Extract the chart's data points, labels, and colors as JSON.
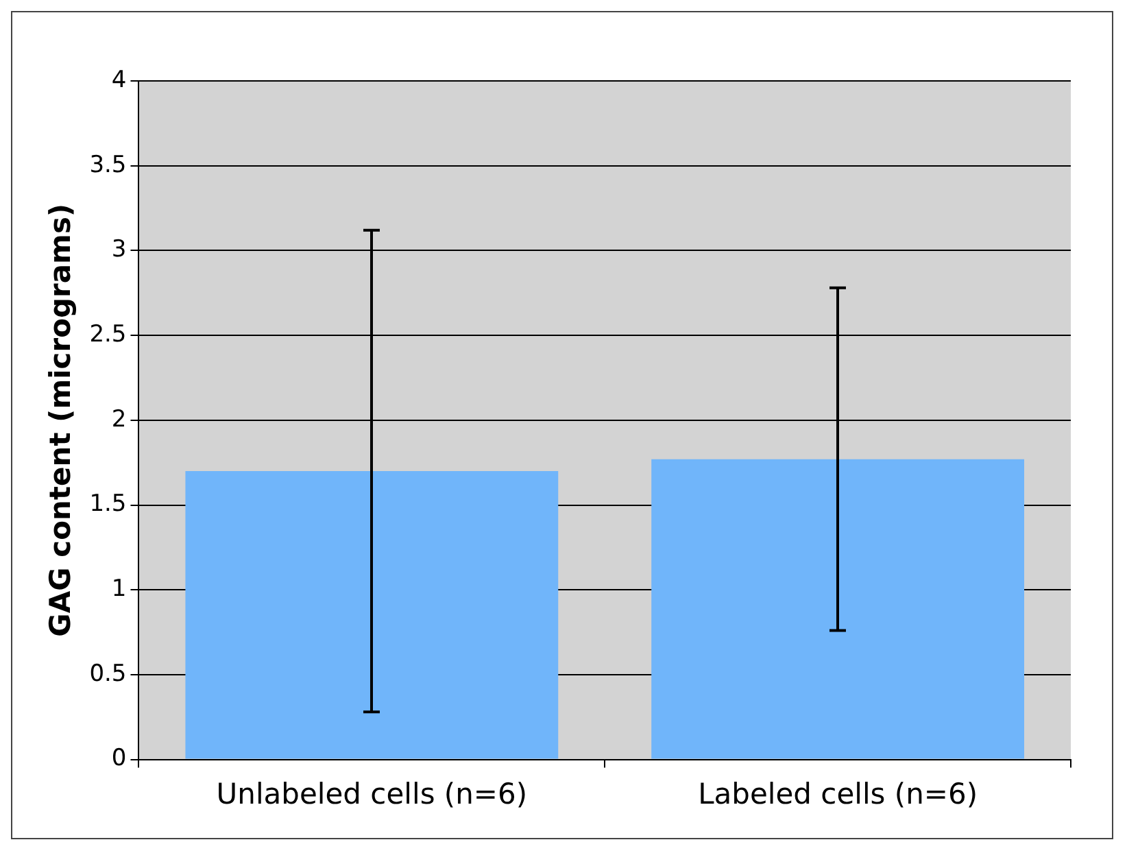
{
  "chart_data": {
    "type": "bar",
    "ylabel": "GAG content (micrograms)",
    "categories": [
      "Unlabeled cells (n=6)",
      "Labeled cells (n=6)"
    ],
    "values": [
      1.7,
      1.77
    ],
    "errors": [
      1.42,
      1.01
    ],
    "color": "#70b5fa",
    "ylim": [
      0,
      4
    ],
    "yticks": [
      0,
      0.5,
      1,
      1.5,
      2,
      2.5,
      3,
      3.5,
      4
    ],
    "grid": "y",
    "legend": false
  }
}
